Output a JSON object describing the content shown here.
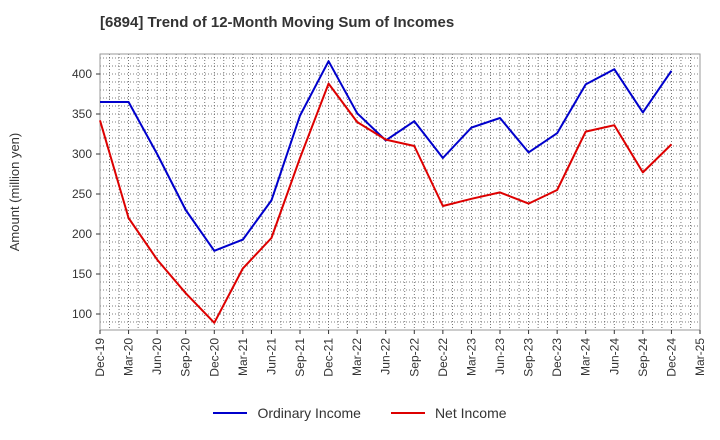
{
  "title": "[6894]  Trend of 12-Month Moving Sum of Incomes",
  "chart_data": {
    "type": "line",
    "title": "[6894]  Trend of 12-Month Moving Sum of Incomes",
    "xlabel": "",
    "ylabel": "Amount (million yen)",
    "ylim": [
      80,
      425
    ],
    "yticks": [
      100,
      150,
      200,
      250,
      300,
      350,
      400
    ],
    "ytick_labels": [
      "100",
      "150",
      "200",
      "250",
      "300",
      "350",
      "400"
    ],
    "grid": true,
    "legend_position": "bottom",
    "categories": [
      "Dec-19",
      "Mar-20",
      "Jun-20",
      "Sep-20",
      "Dec-20",
      "Mar-21",
      "Jun-21",
      "Sep-21",
      "Dec-21",
      "Mar-22",
      "Jun-22",
      "Sep-22",
      "Dec-22",
      "Mar-23",
      "Jun-23",
      "Sep-23",
      "Dec-23",
      "Mar-24",
      "Jun-24",
      "Sep-24",
      "Dec-24",
      "Mar-25"
    ],
    "series": [
      {
        "name": "Ordinary Income",
        "color": "#0000cc",
        "values": [
          365,
          365,
          300,
          230,
          179,
          193,
          242,
          348,
          416,
          351,
          317,
          341,
          295,
          333,
          345,
          302,
          326,
          387,
          406,
          352,
          404,
          null
        ]
      },
      {
        "name": "Net Income",
        "color": "#dd0000",
        "values": [
          342,
          220,
          168,
          126,
          89,
          157,
          195,
          295,
          388,
          340,
          318,
          310,
          235,
          244,
          252,
          238,
          255,
          328,
          336,
          277,
          312,
          null
        ]
      }
    ]
  }
}
